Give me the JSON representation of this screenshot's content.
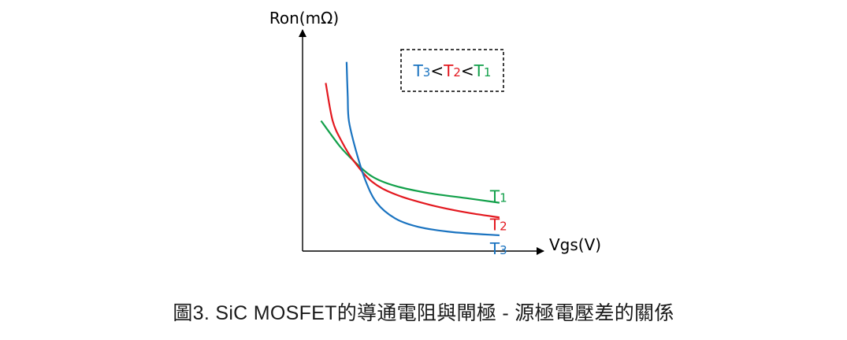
{
  "chart_data": {
    "type": "line",
    "title": "",
    "xlabel": "Vgs(V)",
    "ylabel": "Ron(mΩ)",
    "grid": false,
    "series": [
      {
        "name": "T1",
        "name_parts": [
          "T",
          "1"
        ],
        "color": "#12a04a",
        "points": [
          [
            0.08,
            0.62
          ],
          [
            0.16,
            0.5
          ],
          [
            0.22,
            0.43
          ],
          [
            0.3,
            0.355
          ],
          [
            0.4,
            0.31
          ],
          [
            0.55,
            0.275
          ],
          [
            0.72,
            0.25
          ],
          [
            0.85,
            0.23
          ]
        ]
      },
      {
        "name": "T2",
        "name_parts": [
          "T",
          "2"
        ],
        "color": "#e3181f",
        "points": [
          [
            0.1,
            0.8
          ],
          [
            0.13,
            0.62
          ],
          [
            0.17,
            0.52
          ],
          [
            0.22,
            0.43
          ],
          [
            0.3,
            0.33
          ],
          [
            0.4,
            0.27
          ],
          [
            0.55,
            0.22
          ],
          [
            0.7,
            0.185
          ],
          [
            0.85,
            0.16
          ]
        ]
      },
      {
        "name": "T3",
        "name_parts": [
          "T",
          "3"
        ],
        "color": "#1a73c0",
        "points": [
          [
            0.19,
            0.9
          ],
          [
            0.195,
            0.74
          ],
          [
            0.2,
            0.62
          ],
          [
            0.23,
            0.48
          ],
          [
            0.27,
            0.34
          ],
          [
            0.32,
            0.23
          ],
          [
            0.4,
            0.155
          ],
          [
            0.5,
            0.115
          ],
          [
            0.65,
            0.09
          ],
          [
            0.85,
            0.075
          ]
        ]
      }
    ],
    "legend": {
      "position": "top-right",
      "parts": [
        {
          "text": "T",
          "series": "T3",
          "sub": false
        },
        {
          "text": "3",
          "series": "T3",
          "sub": true
        },
        {
          "text": "<",
          "series": null,
          "sub": false
        },
        {
          "text": "T",
          "series": "T2",
          "sub": false
        },
        {
          "text": "2",
          "series": "T2",
          "sub": true
        },
        {
          "text": "<",
          "series": null,
          "sub": false
        },
        {
          "text": "T",
          "series": "T1",
          "sub": false
        },
        {
          "text": "1",
          "series": "T1",
          "sub": true
        }
      ]
    }
  },
  "caption": "圖3. SiC MOSFET的導通電阻與閘極 - 源極電壓差的關係",
  "colors": {
    "axis": "#000000",
    "legend_text": "#000000"
  }
}
